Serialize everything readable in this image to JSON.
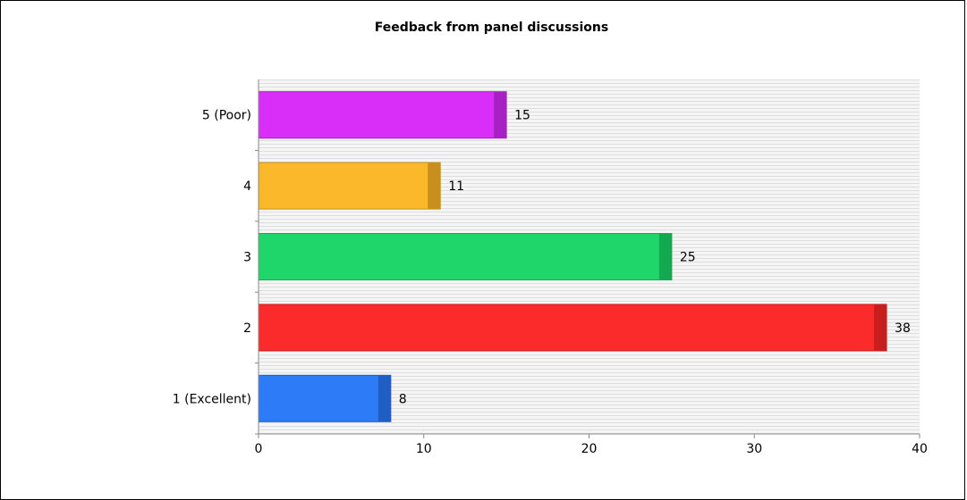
{
  "chart_data": {
    "type": "bar",
    "orientation": "horizontal",
    "title": "Feedback from panel discussions",
    "categories": [
      "1 (Excellent)",
      "2",
      "3",
      "4",
      "5 (Poor)"
    ],
    "values": [
      8,
      38,
      25,
      11,
      15
    ],
    "colors": [
      "#2d7bf6",
      "#fb2b2b",
      "#1ed66a",
      "#fbb82b",
      "#d82ef8"
    ],
    "shade_colors": [
      "#1f5fc4",
      "#c81e1e",
      "#14a850",
      "#c88f1e",
      "#a720c4"
    ],
    "xlim": [
      0,
      40
    ],
    "xticks": [
      0,
      10,
      20,
      30,
      40
    ],
    "xlabel": "",
    "ylabel": "",
    "data_labels": true,
    "grid": true,
    "legend": false
  }
}
